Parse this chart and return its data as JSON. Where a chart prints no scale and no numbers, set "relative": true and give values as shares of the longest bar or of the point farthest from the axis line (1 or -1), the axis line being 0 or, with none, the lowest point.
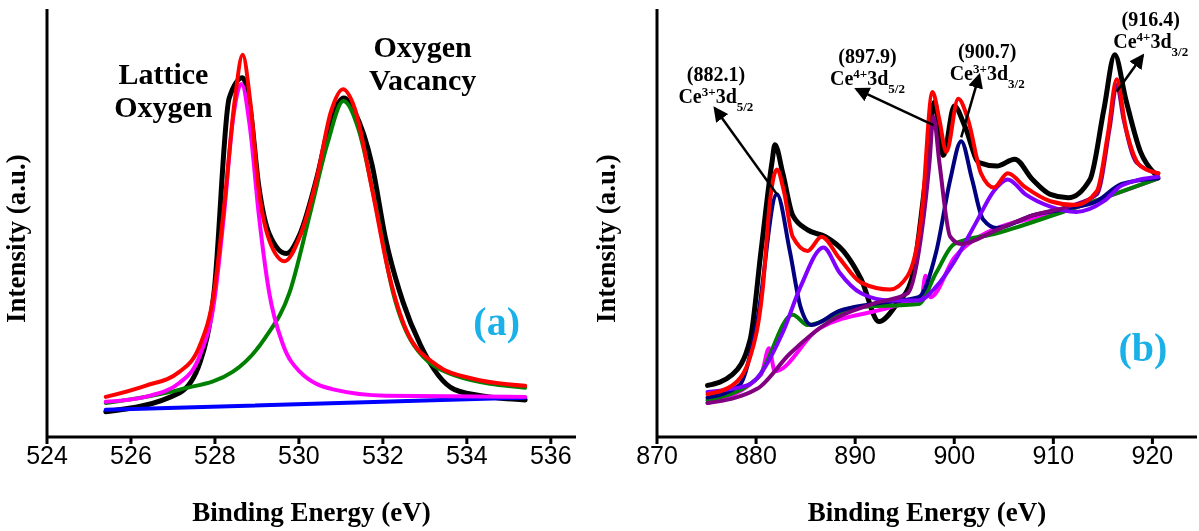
{
  "chart_data": [
    {
      "type": "line",
      "relative": true,
      "xlabel": "Binding Energy (eV)",
      "ylabel": "Intensity (a.u.)",
      "xlim": [
        524,
        536.6
      ],
      "xticks": [
        524,
        526,
        528,
        530,
        532,
        534,
        536
      ],
      "marker": "none",
      "line_style": "solid",
      "annotations": [
        "Lattice\nOxygen",
        "Oxygen\nVacancy",
        "(a)"
      ],
      "series": [
        {
          "color": "#000000",
          "x": [
            525.4,
            527.16,
            527.65,
            527.98,
            528.34,
            528.66,
            528.84,
            529.04,
            529.3,
            529.7,
            530.02,
            530.43,
            530.76,
            531.07,
            531.33,
            531.74,
            532.07,
            532.48,
            532.89,
            533.71,
            534.53,
            535.39
          ],
          "values": [
            0.066,
            0.116,
            0.197,
            0.38,
            0.887,
            0.94,
            0.86,
            0.66,
            0.53,
            0.48,
            0.53,
            0.68,
            0.83,
            0.887,
            0.85,
            0.713,
            0.516,
            0.353,
            0.242,
            0.124,
            0.105,
            0.097
          ]
        },
        {
          "color": "#0000ff",
          "x": [
            525.4,
            535.39
          ],
          "values": [
            0.071,
            0.103
          ]
        },
        {
          "color": "#008000",
          "x": [
            525.4,
            527.16,
            528.43,
            529.2,
            529.78,
            530.27,
            530.68,
            531.06,
            531.42,
            531.83,
            532.24,
            532.73,
            533.71,
            535.39
          ],
          "values": [
            0.089,
            0.124,
            0.171,
            0.26,
            0.379,
            0.587,
            0.768,
            0.879,
            0.805,
            0.605,
            0.379,
            0.242,
            0.161,
            0.129
          ]
        },
        {
          "color": "#ff00ff",
          "x": [
            525.4,
            526.34,
            527.16,
            527.65,
            527.98,
            528.22,
            528.43,
            528.63,
            528.84,
            529.04,
            529.29,
            529.62,
            530.02,
            530.84,
            532.07,
            535.39
          ],
          "values": [
            0.092,
            0.105,
            0.142,
            0.216,
            0.353,
            0.587,
            0.832,
            0.924,
            0.805,
            0.587,
            0.379,
            0.242,
            0.171,
            0.124,
            0.108,
            0.105
          ]
        },
        {
          "color": "#ff0000",
          "x": [
            525.4,
            526.34,
            527.16,
            527.65,
            527.98,
            528.22,
            528.47,
            528.66,
            528.84,
            529.04,
            529.29,
            529.66,
            530.02,
            530.43,
            530.76,
            531.05,
            531.33,
            531.74,
            532.15,
            532.56,
            533.3,
            534.12,
            535.39
          ],
          "values": [
            0.105,
            0.134,
            0.171,
            0.242,
            0.379,
            0.605,
            0.879,
            1,
            0.879,
            0.65,
            0.516,
            0.46,
            0.524,
            0.679,
            0.85,
            0.91,
            0.86,
            0.65,
            0.424,
            0.279,
            0.187,
            0.153,
            0.134
          ]
        }
      ]
    },
    {
      "type": "line",
      "relative": true,
      "xlabel": "Binding Energy (eV)",
      "ylabel": "Intensity (a.u.)",
      "xlim": [
        870,
        924.5
      ],
      "xticks": [
        870,
        880,
        890,
        900,
        910,
        920
      ],
      "marker": "none",
      "line_style": "solid",
      "annotations": [
        {
          "text": "(882.1)\nCe$^{3+}$3d$_{5/2}$",
          "x": 882.1,
          "y": 0.635
        },
        {
          "text": "(897.9)\nCe$^{4+}$3d$_{5/2}$",
          "x": 897.9,
          "y": 0.816
        },
        {
          "text": "(900.7)\nCe$^{3+}$3d$_{3/2}$",
          "x": 900.7,
          "y": 0.784
        },
        {
          "text": "(916.4)\nCe$^{4+}$3d$_{3/2}$",
          "x": 916.4,
          "y": 0.904
        },
        "(b)"
      ],
      "series": [
        {
          "color": "#000000",
          "x": [
            875.1,
            877.6,
            879.4,
            880.5,
            881.6,
            881.9,
            882.7,
            883.7,
            885.2,
            887.0,
            888.8,
            890.6,
            892.4,
            894.2,
            895.7,
            897.1,
            898.0,
            898.9,
            900.0,
            901.1,
            902.5,
            904.3,
            906.1,
            907.9,
            909.7,
            911.5,
            913.7,
            915.1,
            916.2,
            917.3,
            918.8,
            920.2
          ],
          "values": [
            0.135,
            0.163,
            0.255,
            0.487,
            0.718,
            0.765,
            0.69,
            0.58,
            0.542,
            0.524,
            0.487,
            0.413,
            0.302,
            0.348,
            0.413,
            0.674,
            0.876,
            0.737,
            0.866,
            0.811,
            0.718,
            0.709,
            0.727,
            0.674,
            0.635,
            0.626,
            0.674,
            0.857,
            1,
            0.885,
            0.746,
            0.69
          ]
        },
        {
          "color": "#ff00ff",
          "x": [
            875.1,
            880.5,
            881.3,
            881.9,
            886.3,
            893.5,
            896.7,
            897.1,
            897.6,
            900.0,
            902.5,
            911.5,
            920.6
          ],
          "values": [
            0.089,
            0.163,
            0.232,
            0.172,
            0.283,
            0.339,
            0.366,
            0.422,
            0.366,
            0.469,
            0.524,
            0.594,
            0.677
          ]
        },
        {
          "color": "#008000",
          "x": [
            875.1,
            880.1,
            883.7,
            885.2,
            889.9,
            896.4,
            898.2,
            900.0,
            904.3,
            911.5,
            915.1,
            920.6
          ],
          "values": [
            0.096,
            0.153,
            0.32,
            0.293,
            0.339,
            0.348,
            0.431,
            0.505,
            0.533,
            0.594,
            0.626,
            0.677
          ]
        },
        {
          "color": "#000080",
          "x": [
            875.1,
            878.3,
            880.1,
            882.1,
            883.4,
            884.5,
            885.6,
            888.4,
            891.7,
            896.4,
            898.2,
            899.6,
            900.7,
            901.8,
            902.9,
            904.3,
            907.9,
            911.5,
            914.4,
            916.9,
            920.6
          ],
          "values": [
            0.103,
            0.135,
            0.302,
            0.635,
            0.487,
            0.339,
            0.293,
            0.33,
            0.348,
            0.366,
            0.487,
            0.674,
            0.774,
            0.674,
            0.57,
            0.547,
            0.58,
            0.598,
            0.617,
            0.662,
            0.677
          ]
        },
        {
          "color": "#8000ff",
          "x": [
            875.1,
            879.1,
            882.7,
            884.5,
            886.8,
            888.4,
            890.6,
            893.5,
            896.4,
            898.2,
            900.0,
            902.2,
            904.0,
            905.4,
            907.2,
            909.7,
            912.3,
            915.1,
            916.9,
            920.6
          ],
          "values": [
            0.118,
            0.135,
            0.274,
            0.394,
            0.496,
            0.431,
            0.376,
            0.357,
            0.357,
            0.394,
            0.459,
            0.561,
            0.644,
            0.674,
            0.635,
            0.603,
            0.589,
            0.617,
            0.658,
            0.681
          ]
        },
        {
          "color": "#800080",
          "x": [
            875.1,
            880.1,
            883.4,
            887.4,
            891.7,
            895.3,
            896.7,
            897.5,
            897.9,
            898.5,
            899.6,
            900.7,
            904.3,
            907.9,
            911.5,
            914.4,
            915.7,
            916.4,
            917.1,
            918.4,
            920.6
          ],
          "values": [
            0.089,
            0.126,
            0.218,
            0.302,
            0.348,
            0.376,
            0.533,
            0.718,
            0.839,
            0.718,
            0.524,
            0.505,
            0.542,
            0.58,
            0.603,
            0.635,
            0.811,
            0.922,
            0.83,
            0.718,
            0.69
          ]
        },
        {
          "color": "#ff0000",
          "x": [
            875.1,
            877.6,
            879.4,
            880.7,
            881.4,
            882.1,
            882.8,
            883.7,
            885.2,
            886.6,
            888.4,
            890.6,
            893.5,
            895.3,
            896.7,
            897.8,
            898.5,
            899.2,
            900.4,
            901.4,
            902.7,
            904.0,
            905.4,
            907.2,
            909.7,
            912.3,
            914.4,
            915.5,
            916.4,
            917.3,
            918.8,
            920.6
          ],
          "values": [
            0.112,
            0.135,
            0.209,
            0.395,
            0.617,
            0.7,
            0.644,
            0.524,
            0.487,
            0.524,
            0.468,
            0.404,
            0.386,
            0.422,
            0.58,
            0.903,
            0.83,
            0.746,
            0.885,
            0.83,
            0.69,
            0.653,
            0.69,
            0.653,
            0.617,
            0.607,
            0.644,
            0.792,
            0.936,
            0.811,
            0.709,
            0.69
          ]
        }
      ]
    }
  ]
}
